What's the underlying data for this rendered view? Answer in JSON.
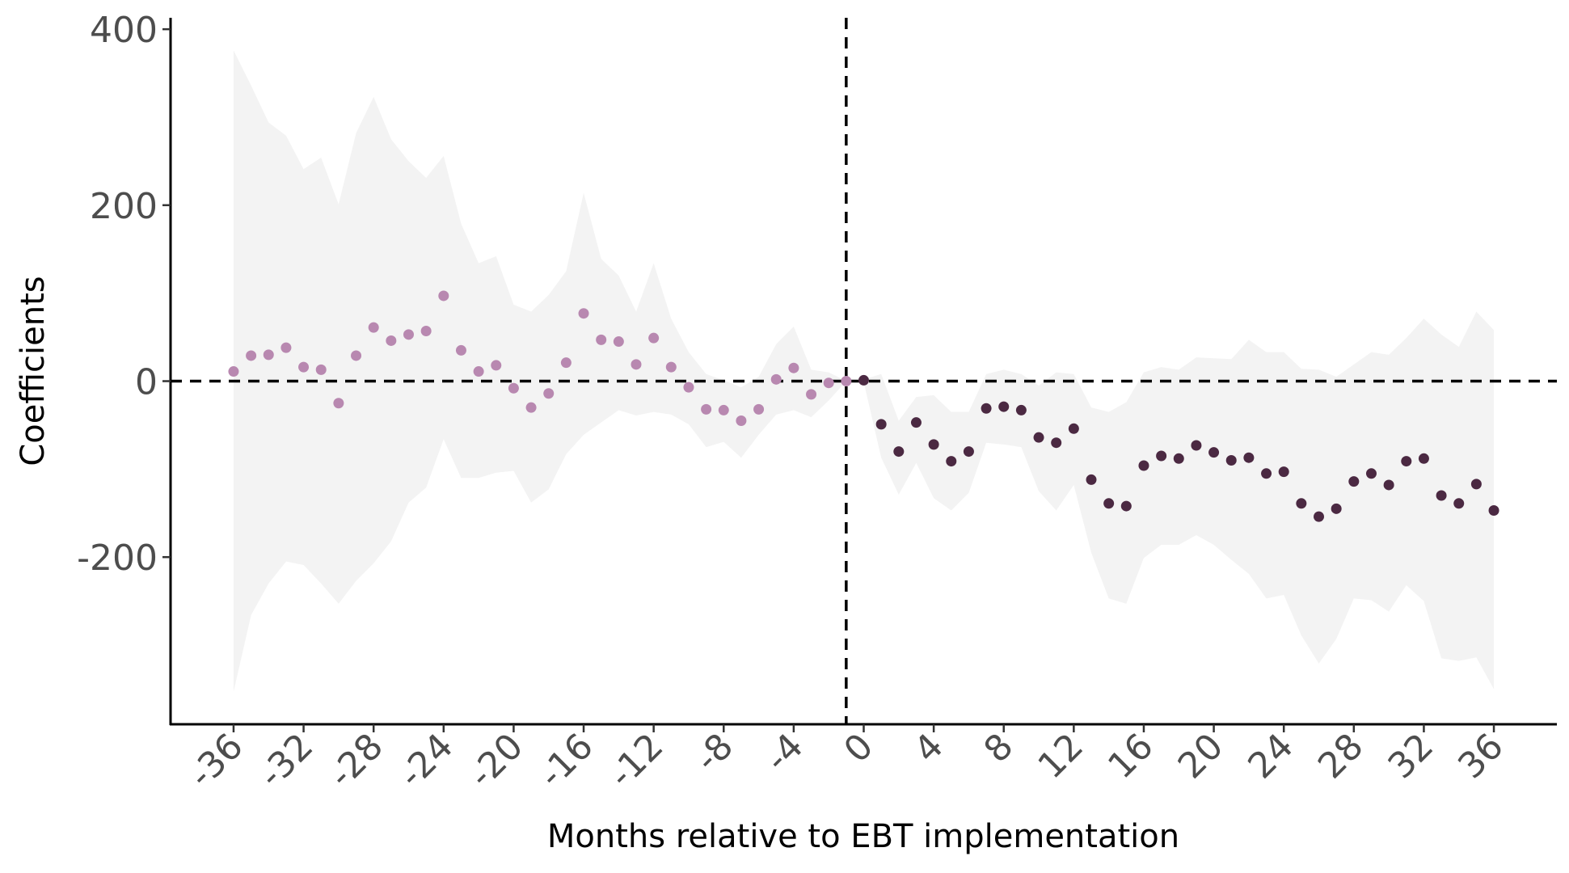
{
  "chart_data": {
    "type": "scatter",
    "x_label": "Months relative to EBT implementation",
    "y_label": "Coefficients",
    "xlim": [
      -39.6,
      39.6
    ],
    "ylim": [
      -390,
      413
    ],
    "xticks": [
      -36,
      -32,
      -28,
      -24,
      -20,
      -16,
      -12,
      -8,
      -4,
      0,
      4,
      8,
      12,
      16,
      20,
      24,
      28,
      32,
      36
    ],
    "yticks": [
      -200,
      0,
      200,
      400
    ],
    "vline": -1,
    "hline": 0,
    "band": {
      "color": "#f3f3f3",
      "x": [
        -36,
        -35,
        -34,
        -33,
        -32,
        -31,
        -30,
        -29,
        -28,
        -27,
        -26,
        -25,
        -24,
        -23,
        -22,
        -21,
        -20,
        -19,
        -18,
        -17,
        -16,
        -15,
        -14,
        -13,
        -12,
        -11,
        -10,
        -9,
        -8,
        -7,
        -6,
        -5,
        -4,
        -3,
        -2,
        -1,
        0,
        1,
        2,
        3,
        4,
        5,
        6,
        7,
        8,
        9,
        10,
        11,
        12,
        13,
        14,
        15,
        16,
        17,
        18,
        19,
        20,
        21,
        22,
        23,
        24,
        25,
        26,
        27,
        28,
        29,
        30,
        31,
        32,
        33,
        34,
        35,
        36
      ],
      "upper": [
        376,
        336,
        294,
        279,
        241,
        254,
        201,
        282,
        323,
        275,
        250,
        231,
        256,
        179,
        134,
        142,
        87,
        79,
        98,
        125,
        214,
        139,
        120,
        79,
        134,
        71,
        33,
        8,
        1,
        -7,
        5,
        42,
        62,
        13,
        10,
        0,
        2,
        8,
        -45,
        -18,
        -16,
        -35,
        -35,
        8,
        13,
        8,
        -5,
        10,
        8,
        -30,
        -35,
        -24,
        10,
        16,
        13,
        27,
        26,
        25,
        47,
        33,
        33,
        14,
        13,
        5,
        19,
        33,
        30,
        49,
        71,
        53,
        39,
        79,
        58
      ],
      "lower": [
        -353,
        -266,
        -230,
        -205,
        -209,
        -230,
        -253,
        -227,
        -207,
        -182,
        -138,
        -121,
        -66,
        -110,
        -110,
        -104,
        -102,
        -138,
        -123,
        -83,
        -61,
        -47,
        -33,
        -39,
        -35,
        -38,
        -49,
        -75,
        -69,
        -87,
        -61,
        -38,
        -33,
        -41,
        -22,
        0,
        -1,
        -87,
        -129,
        -93,
        -133,
        -147,
        -127,
        -70,
        -72,
        -75,
        -125,
        -147,
        -118,
        -195,
        -247,
        -253,
        -201,
        -186,
        -186,
        -175,
        -186,
        -203,
        -219,
        -247,
        -243,
        -289,
        -321,
        -293,
        -247,
        -249,
        -262,
        -232,
        -250,
        -315,
        -318,
        -314,
        -350
      ]
    },
    "series": [
      {
        "color": "#b888b0",
        "x": [
          -36,
          -35,
          -34,
          -33,
          -32,
          -31,
          -30,
          -29,
          -28,
          -27,
          -26,
          -25,
          -24,
          -23,
          -22,
          -21,
          -20,
          -19,
          -18,
          -17,
          -16,
          -15,
          -14,
          -13,
          -12,
          -11,
          -10,
          -9,
          -8,
          -7,
          -6,
          -5,
          -4,
          -3,
          -2,
          -1
        ],
        "values": [
          11,
          29,
          30,
          38,
          16,
          13,
          -25,
          29,
          61,
          46,
          53,
          57,
          97,
          35,
          11,
          18,
          -8,
          -30,
          -14,
          21,
          77,
          47,
          45,
          19,
          49,
          16,
          -7,
          -32,
          -33,
          -45,
          -32,
          2,
          15,
          -15,
          -2,
          0
        ]
      },
      {
        "color": "#4b2942",
        "x": [
          0,
          1,
          2,
          3,
          4,
          5,
          6,
          7,
          8,
          9,
          10,
          11,
          12,
          13,
          14,
          15,
          16,
          17,
          18,
          19,
          20,
          21,
          22,
          23,
          24,
          25,
          26,
          27,
          28,
          29,
          30,
          31,
          32,
          33,
          34,
          35,
          36
        ],
        "values": [
          1,
          -49,
          -80,
          -47,
          -72,
          -91,
          -80,
          -31,
          -29,
          -33,
          -64,
          -70,
          -54,
          -112,
          -139,
          -142,
          -96,
          -85,
          -88,
          -73,
          -81,
          -90,
          -87,
          -105,
          -103,
          -139,
          -154,
          -145,
          -114,
          -105,
          -118,
          -91,
          -88,
          -130,
          -139,
          -117,
          -147
        ]
      }
    ]
  }
}
